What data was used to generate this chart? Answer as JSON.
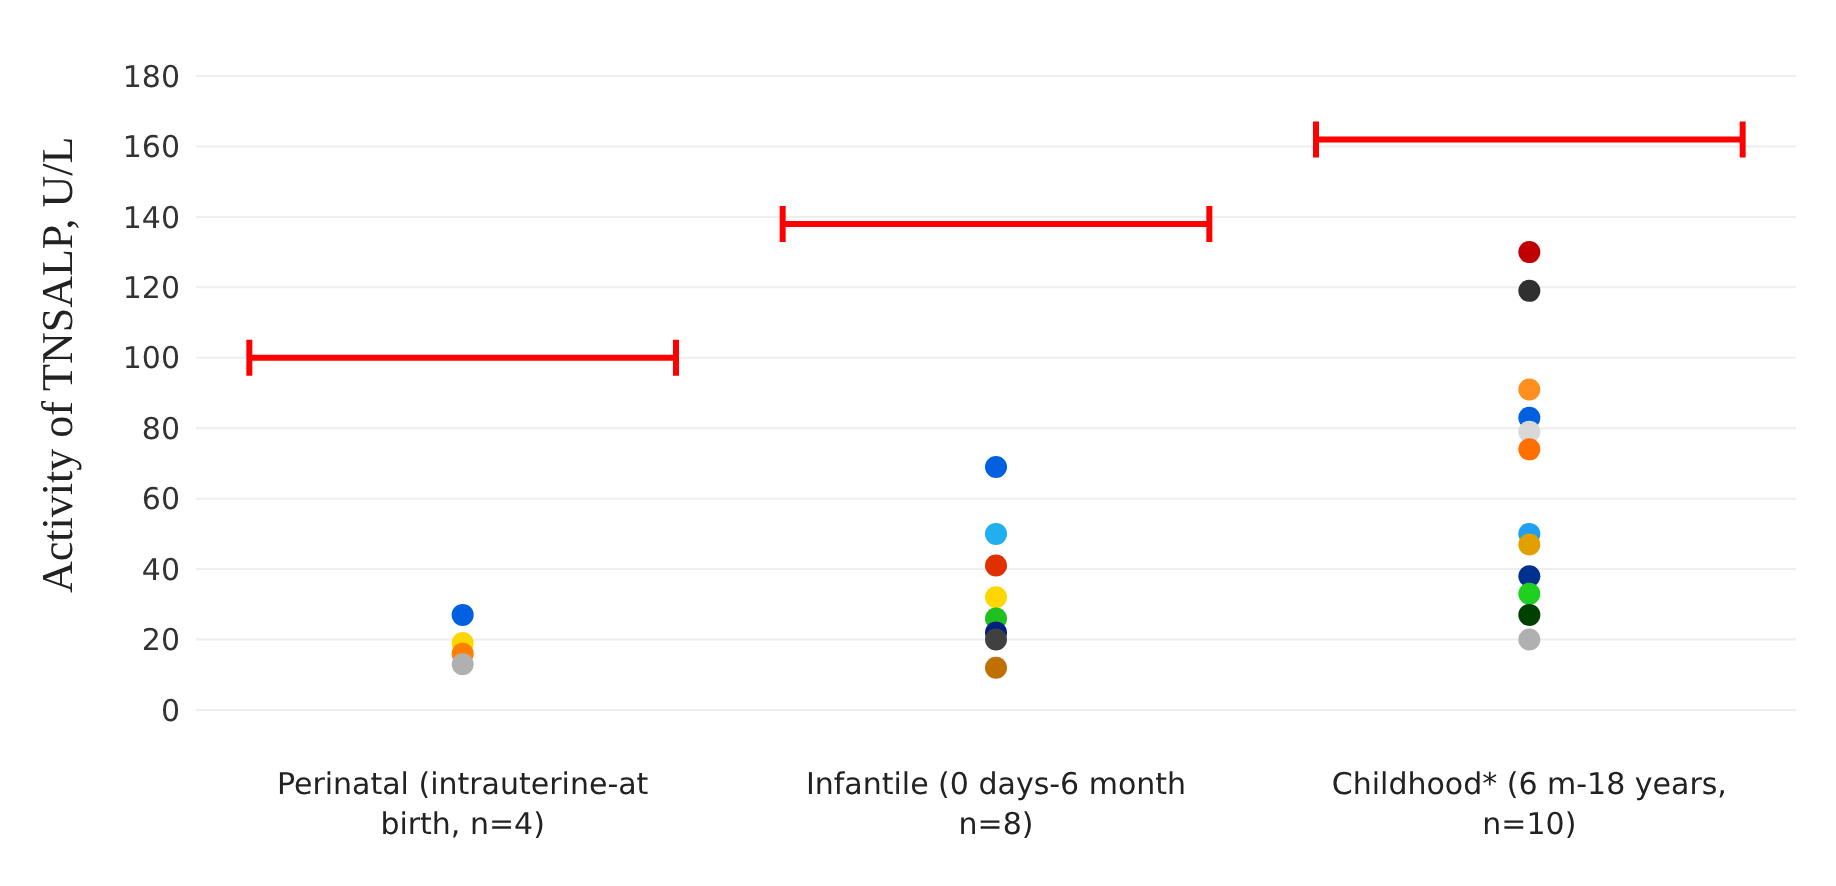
{
  "chart_data": {
    "type": "scatter",
    "ylabel": "Activity of TNSALP, U/L",
    "categories": [
      "Perinatal (intrauterine-at birth, n=4)",
      "Infantile (0 days-6 month n=8)",
      "Childhood* (6 m-18 years, n=10)"
    ],
    "ylim": [
      0,
      180
    ],
    "yticks": [
      0,
      20,
      40,
      60,
      80,
      100,
      120,
      140,
      160,
      180
    ],
    "grid": "y",
    "ref_lines": [
      {
        "axis": "y",
        "value": 100,
        "color": "#ff0000"
      },
      {
        "axis": "y",
        "value": 138,
        "color": "#ff0000"
      },
      {
        "axis": "y",
        "value": 162,
        "color": "#ff0000"
      }
    ],
    "series": [
      {
        "marker": "circle",
        "x": [
          "Perinatal (intrauterine-at birth, n=4)",
          "Perinatal (intrauterine-at birth, n=4)",
          "Perinatal (intrauterine-at birth, n=4)",
          "Perinatal (intrauterine-at birth, n=4)",
          "Infantile (0 days-6 month n=8)",
          "Infantile (0 days-6 month n=8)",
          "Infantile (0 days-6 month n=8)",
          "Infantile (0 days-6 month n=8)",
          "Infantile (0 days-6 month n=8)",
          "Infantile (0 days-6 month n=8)",
          "Infantile (0 days-6 month n=8)",
          "Infantile (0 days-6 month n=8)",
          "Childhood* (6 m-18 years, n=10)",
          "Childhood* (6 m-18 years, n=10)",
          "Childhood* (6 m-18 years, n=10)",
          "Childhood* (6 m-18 years, n=10)",
          "Childhood* (6 m-18 years, n=10)",
          "Childhood* (6 m-18 years, n=10)",
          "Childhood* (6 m-18 years, n=10)",
          "Childhood* (6 m-18 years, n=10)",
          "Childhood* (6 m-18 years, n=10)",
          "Childhood* (6 m-18 years, n=10)",
          "Childhood* (6 m-18 years, n=10)",
          "Childhood* (6 m-18 years, n=10)"
        ],
        "values": [
          27,
          19,
          16,
          13,
          69,
          50,
          41,
          32,
          26,
          22,
          20,
          12,
          130,
          119,
          91,
          83,
          79,
          74,
          50,
          47,
          38,
          33,
          27,
          20
        ],
        "colors": [
          "#0060e0",
          "#ffd700",
          "#ff8000",
          "#b0b0b0",
          "#0060e0",
          "#20b0f0",
          "#e03000",
          "#ffd700",
          "#20c020",
          "#002080",
          "#404040",
          "#c07000",
          "#c00000",
          "#303030",
          "#ff9020",
          "#0060e0",
          "#d8d8d8",
          "#ff7000",
          "#20a0f0",
          "#e0a000",
          "#003090",
          "#20d020",
          "#004000",
          "#b0b0b0"
        ]
      }
    ]
  }
}
